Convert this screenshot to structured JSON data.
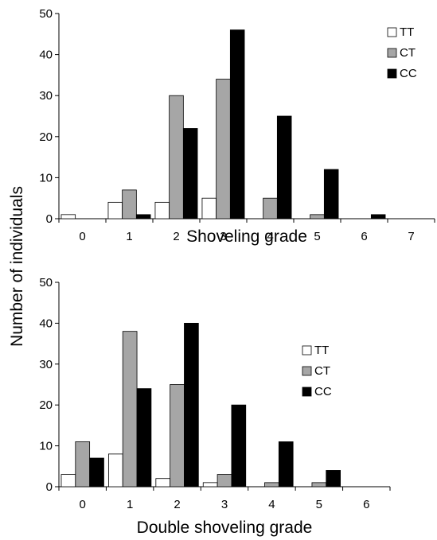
{
  "shared_ylabel": "Number of individuals",
  "colors": {
    "TT": "#ffffff",
    "CT": "#a6a6a6",
    "CC": "#000000",
    "stroke": "#000000"
  },
  "chart_data": [
    {
      "type": "bar",
      "title": "",
      "xlabel": "Shoveling grade",
      "ylabel": "Number of individuals",
      "categories": [
        "0",
        "1",
        "2",
        "3",
        "4",
        "5",
        "6",
        "7"
      ],
      "ylim": [
        0,
        50
      ],
      "yticks": [
        0,
        10,
        20,
        30,
        40,
        50
      ],
      "grid": false,
      "legend": "top-right",
      "series": [
        {
          "name": "TT",
          "values": [
            1,
            4,
            4,
            5,
            0,
            0,
            0,
            0
          ]
        },
        {
          "name": "CT",
          "values": [
            0,
            7,
            30,
            34,
            5,
            1,
            0,
            0
          ]
        },
        {
          "name": "CC",
          "values": [
            0,
            1,
            22,
            46,
            25,
            12,
            1,
            0
          ]
        }
      ]
    },
    {
      "type": "bar",
      "title": "",
      "xlabel": "Double shoveling grade",
      "ylabel": "Number of individuals",
      "categories": [
        "0",
        "1",
        "2",
        "3",
        "4",
        "5",
        "6"
      ],
      "ylim": [
        0,
        50
      ],
      "yticks": [
        0,
        10,
        20,
        30,
        40,
        50
      ],
      "grid": false,
      "legend": "top-right",
      "series": [
        {
          "name": "TT",
          "values": [
            3,
            8,
            2,
            1,
            0,
            0,
            0
          ]
        },
        {
          "name": "CT",
          "values": [
            11,
            38,
            25,
            3,
            1,
            1,
            0
          ]
        },
        {
          "name": "CC",
          "values": [
            7,
            24,
            40,
            20,
            11,
            4,
            0
          ]
        }
      ]
    }
  ]
}
